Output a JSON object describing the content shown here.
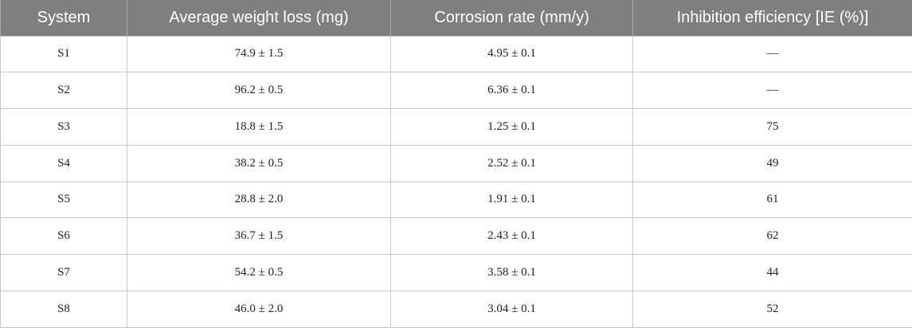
{
  "table": {
    "headers": [
      "System",
      "Average weight loss (mg)",
      "Corrosion rate (mm/y)",
      "Inhibition efficiency [IE (%)]"
    ],
    "rows": [
      [
        "S1",
        "74.9 ± 1.5",
        "4.95 ± 0.1",
        "—"
      ],
      [
        "S2",
        "96.2 ± 0.5",
        "6.36 ± 0.1",
        "—"
      ],
      [
        "S3",
        "18.8 ± 1.5",
        "1.25 ± 0.1",
        "75"
      ],
      [
        "S4",
        "38.2 ± 0.5",
        "2.52 ± 0.1",
        "49"
      ],
      [
        "S5",
        "28.8 ± 2.0",
        "1.91 ± 0.1",
        "61"
      ],
      [
        "S6",
        "36.7 ± 1.5",
        "2.43 ± 0.1",
        "62"
      ],
      [
        "S7",
        "54.2 ± 0.5",
        "3.58 ± 0.1",
        "44"
      ],
      [
        "S8",
        "46.0 ± 2.0",
        "3.04 ± 0.1",
        "52"
      ]
    ]
  }
}
